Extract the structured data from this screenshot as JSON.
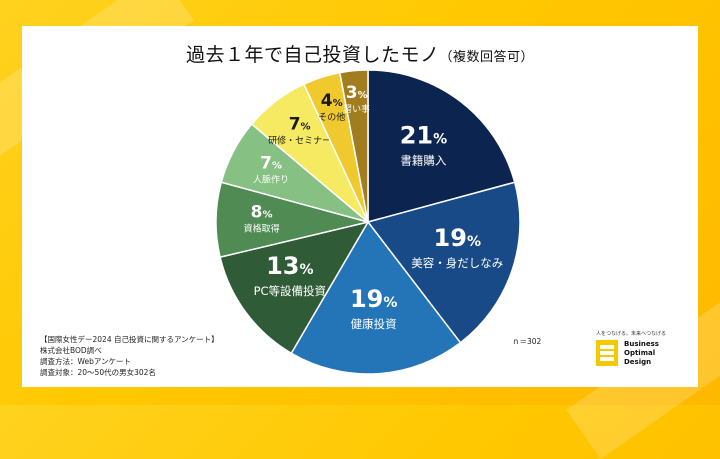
{
  "title": "過去１年で自己投資したモノ",
  "title_suffix": "（複数回答可）",
  "chart_data": {
    "type": "pie",
    "unit": "%",
    "categories": [
      "書籍購入",
      "美容・身だしなみ",
      "健康投資",
      "PC等設備投資",
      "資格取得",
      "人脈作り",
      "研修・セミナー",
      "その他",
      "習い事"
    ],
    "values": [
      21,
      19,
      19,
      13,
      8,
      7,
      7,
      4,
      3
    ],
    "colors": [
      "#0c2450",
      "#174a86",
      "#2474b8",
      "#2f5b36",
      "#4f8b52",
      "#86c082",
      "#f5ea62",
      "#f0c92e",
      "#a27d1f"
    ],
    "n_label": "ｎ＝302"
  },
  "notes": [
    "【国際女性デー2024 自己投資に関するアンケート】",
    "株式会社BOD調べ",
    "調査方法：Webアンケート",
    "調査対象：20～50代の男女302名"
  ],
  "logo": {
    "tagline": "人をつなげる。未来へつなげる",
    "lines": [
      "Business",
      "Optimal",
      "Design"
    ]
  }
}
